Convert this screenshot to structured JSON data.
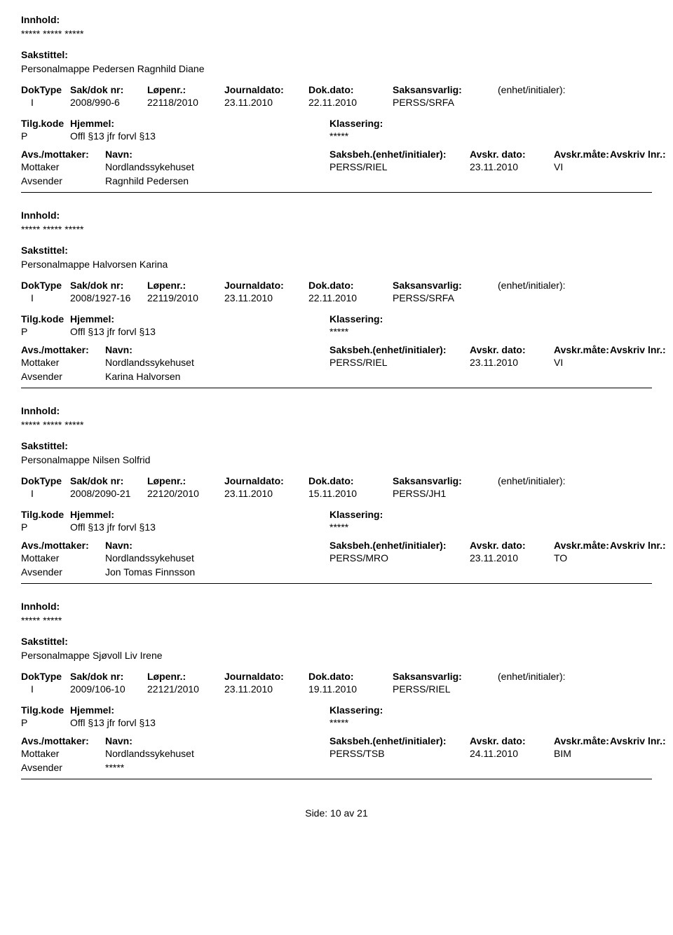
{
  "labels": {
    "innhold": "Innhold:",
    "sakstittel": "Sakstittel:",
    "doktype": "DokType",
    "sakdok": "Sak/dok nr:",
    "lopenr": "Løpenr.:",
    "journaldato": "Journaldato:",
    "dokdato": "Dok.dato:",
    "saksansvarlig": "Saksansvarlig:",
    "enhet": "(enhet/initialer):",
    "tilgkode": "Tilg.kode",
    "hjemmel": "Hjemmel:",
    "klassering": "Klassering:",
    "avsmottaker": "Avs./mottaker:",
    "navn": "Navn:",
    "saksbeh": "Saksbeh.(enhet/initialer):",
    "avskrdato": "Avskr. dato:",
    "avskrmate": "Avskr.måte:",
    "avskrivlnr": "Avskriv lnr.:",
    "mottaker": "Mottaker",
    "avsender": "Avsender"
  },
  "records": [
    {
      "innhold": "***** ***** *****",
      "sakstittel": "Personalmappe Pedersen Ragnhild Diane",
      "doktype": "I",
      "sakdok": "2008/990-6",
      "lopenr": "22118/2010",
      "journaldato": "23.11.2010",
      "dokdato": "22.11.2010",
      "saksansvarlig": "PERSS/SRFA",
      "tilgkode": "P",
      "hjemmel": "Offl §13 jfr forvl §13",
      "klassering": "*****",
      "mottaker_navn": "Nordlandssykehuset",
      "saksbeh": "PERSS/RIEL",
      "avskrdato": "23.11.2010",
      "avskrmate": "VI",
      "avsender_navn": "Ragnhild Pedersen"
    },
    {
      "innhold": "***** ***** *****",
      "sakstittel": "Personalmappe Halvorsen Karina",
      "doktype": "I",
      "sakdok": "2008/1927-16",
      "lopenr": "22119/2010",
      "journaldato": "23.11.2010",
      "dokdato": "22.11.2010",
      "saksansvarlig": "PERSS/SRFA",
      "tilgkode": "P",
      "hjemmel": "Offl §13 jfr forvl §13",
      "klassering": "*****",
      "mottaker_navn": "Nordlandssykehuset",
      "saksbeh": "PERSS/RIEL",
      "avskrdato": "23.11.2010",
      "avskrmate": "VI",
      "avsender_navn": "Karina Halvorsen"
    },
    {
      "innhold": "***** ***** *****",
      "sakstittel": "Personalmappe Nilsen Solfrid",
      "doktype": "I",
      "sakdok": "2008/2090-21",
      "lopenr": "22120/2010",
      "journaldato": "23.11.2010",
      "dokdato": "15.11.2010",
      "saksansvarlig": "PERSS/JH1",
      "tilgkode": "P",
      "hjemmel": "Offl §13 jfr forvl §13",
      "klassering": "*****",
      "mottaker_navn": "Nordlandssykehuset",
      "saksbeh": "PERSS/MRO",
      "avskrdato": "23.11.2010",
      "avskrmate": "TO",
      "avsender_navn": "Jon Tomas Finnsson"
    },
    {
      "innhold": "***** *****",
      "sakstittel": "Personalmappe Sjøvoll Liv Irene",
      "doktype": "I",
      "sakdok": "2009/106-10",
      "lopenr": "22121/2010",
      "journaldato": "23.11.2010",
      "dokdato": "19.11.2010",
      "saksansvarlig": "PERSS/RIEL",
      "tilgkode": "P",
      "hjemmel": "Offl §13 jfr forvl §13",
      "klassering": "*****",
      "mottaker_navn": "Nordlandssykehuset",
      "saksbeh": "PERSS/TSB",
      "avskrdato": "24.11.2010",
      "avskrmate": "BIM",
      "avsender_navn": "*****"
    }
  ],
  "footer": {
    "side": "Side:",
    "page": "10 av  21"
  }
}
